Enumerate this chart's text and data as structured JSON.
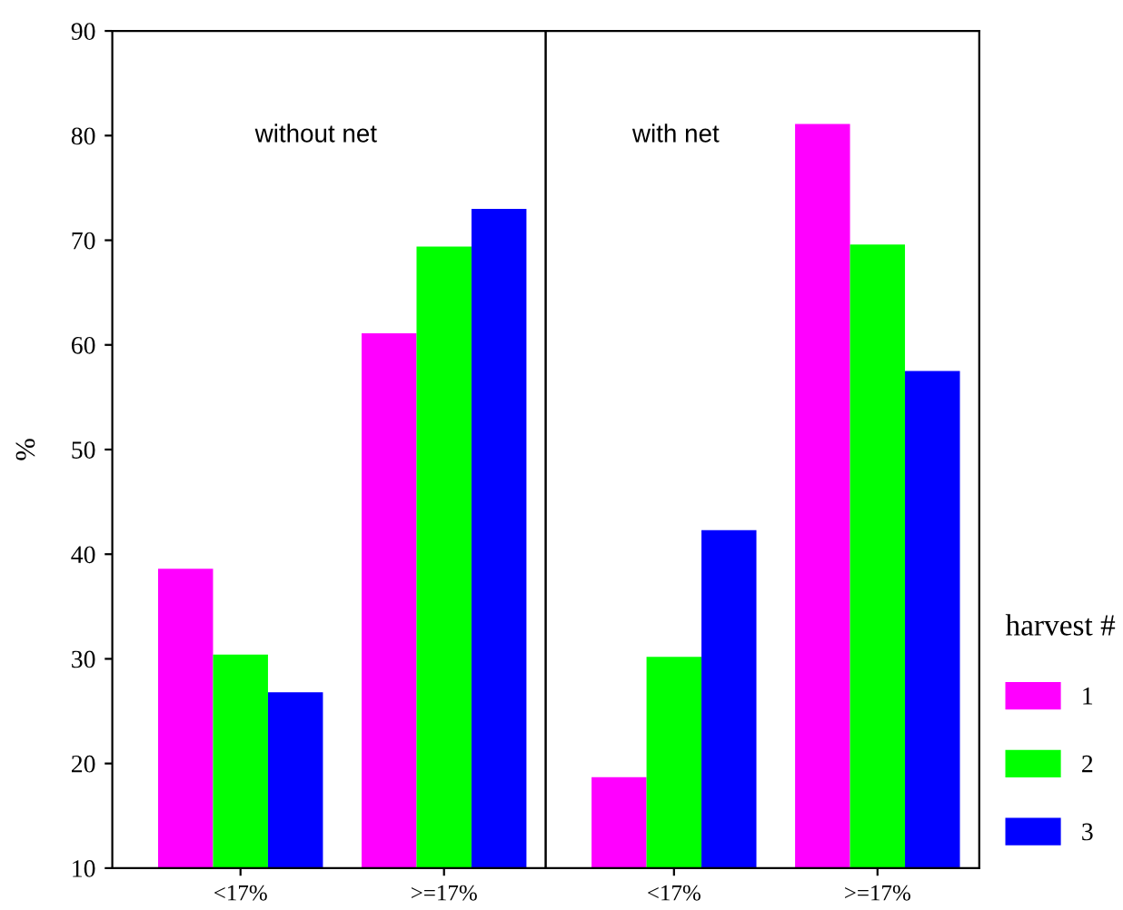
{
  "chart_data": [
    {
      "type": "bar",
      "title": "without net",
      "ylabel": "%",
      "categories": [
        "<17%",
        ">=17%"
      ],
      "legend_title": "harvest #",
      "series": [
        {
          "name": "1",
          "color": "#ff00ff",
          "values": [
            38.6,
            61.1
          ]
        },
        {
          "name": "2",
          "color": "#00ff00",
          "values": [
            30.4,
            69.4
          ]
        },
        {
          "name": "3",
          "color": "#0000ff",
          "values": [
            26.8,
            73.0
          ]
        }
      ],
      "ylim": [
        10,
        90
      ],
      "yticks": [
        10,
        20,
        30,
        40,
        50,
        60,
        70,
        80,
        90
      ],
      "grid": false,
      "legend": "right"
    },
    {
      "type": "bar",
      "title": "with net",
      "categories": [
        "<17%",
        ">=17%"
      ],
      "series": [
        {
          "name": "1",
          "color": "#ff00ff",
          "values": [
            18.7,
            81.1
          ]
        },
        {
          "name": "2",
          "color": "#00ff00",
          "values": [
            30.2,
            69.6
          ]
        },
        {
          "name": "3",
          "color": "#0000ff",
          "values": [
            42.3,
            57.5
          ]
        }
      ],
      "ylim": [
        10,
        90
      ],
      "yticks": [
        10,
        20,
        30,
        40,
        50,
        60,
        70,
        80,
        90
      ],
      "grid": false,
      "tick_labels": "x"
    }
  ]
}
